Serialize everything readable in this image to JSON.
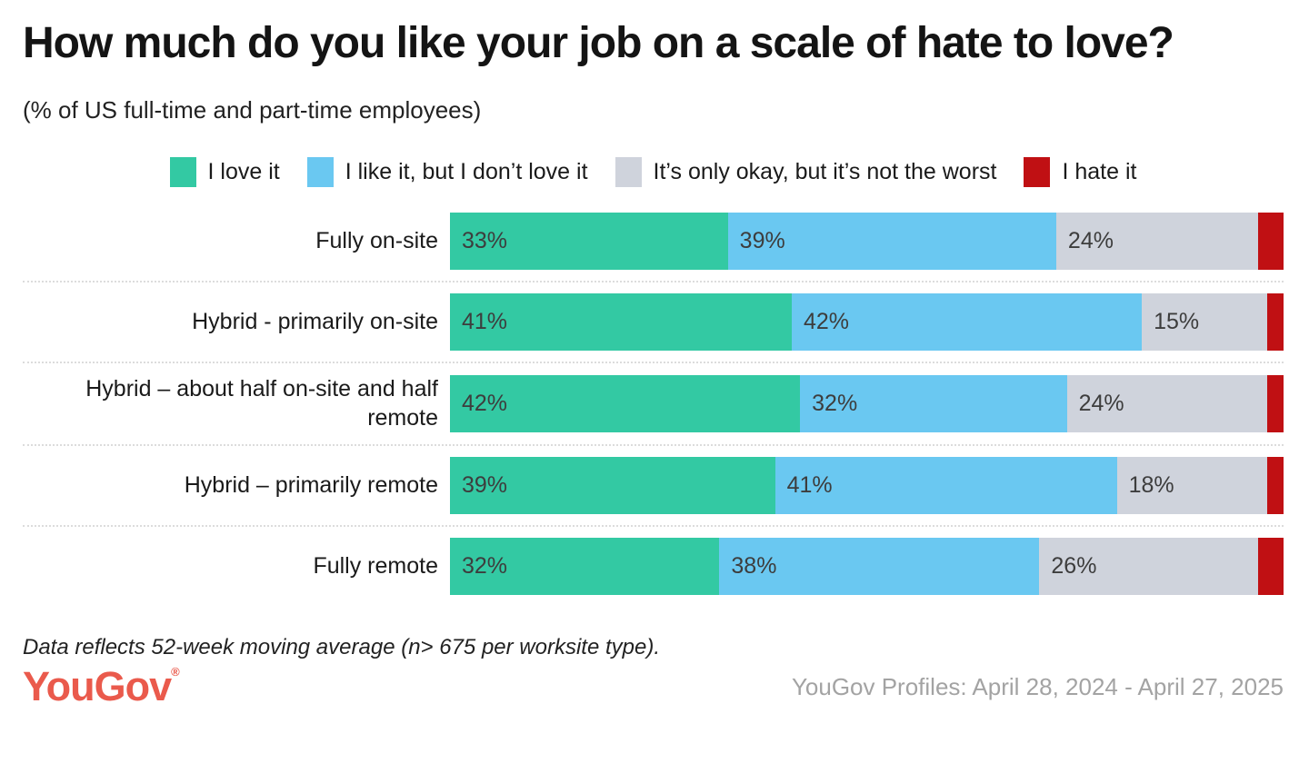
{
  "chart": {
    "title": "How much do you like your job on a scale of hate to love?",
    "subtitle": "(% of US full-time and part-time employees)",
    "note": "Data reflects 52-week moving average (n> 675 per worksite type).",
    "source": "YouGov Profiles: April 28, 2024 - April 27, 2025",
    "logo_text": "YouGov",
    "logo_mark": "®",
    "logo_color": "#EA5A4C",
    "source_color": "#A3A3A3"
  },
  "chart_data": {
    "type": "bar",
    "orientation": "horizontal",
    "stacked": true,
    "unit": "%",
    "legend_position": "top",
    "xlim": [
      0,
      100
    ],
    "grid": false,
    "categories": [
      "Fully on-site",
      "Hybrid - primarily on-site",
      "Hybrid – about half on-site and half remote",
      "Hybrid – primarily remote",
      "Fully remote"
    ],
    "series": [
      {
        "name": "I love it",
        "color": "#33C9A3",
        "values": [
          33,
          41,
          42,
          39,
          32
        ],
        "labels_shown": true
      },
      {
        "name": "I like it, but I don’t love it",
        "color": "#6AC8F1",
        "values": [
          39,
          42,
          32,
          41,
          38
        ],
        "labels_shown": true
      },
      {
        "name": "It’s only okay, but it’s not the worst",
        "color": "#CFD3DC",
        "values": [
          24,
          15,
          24,
          18,
          26
        ],
        "labels_shown": true
      },
      {
        "name": "I hate it",
        "color": "#C01013",
        "values": [
          3,
          2,
          2,
          2,
          3
        ],
        "labels_shown": false,
        "values_estimated_from_bar_widths": true
      }
    ]
  }
}
